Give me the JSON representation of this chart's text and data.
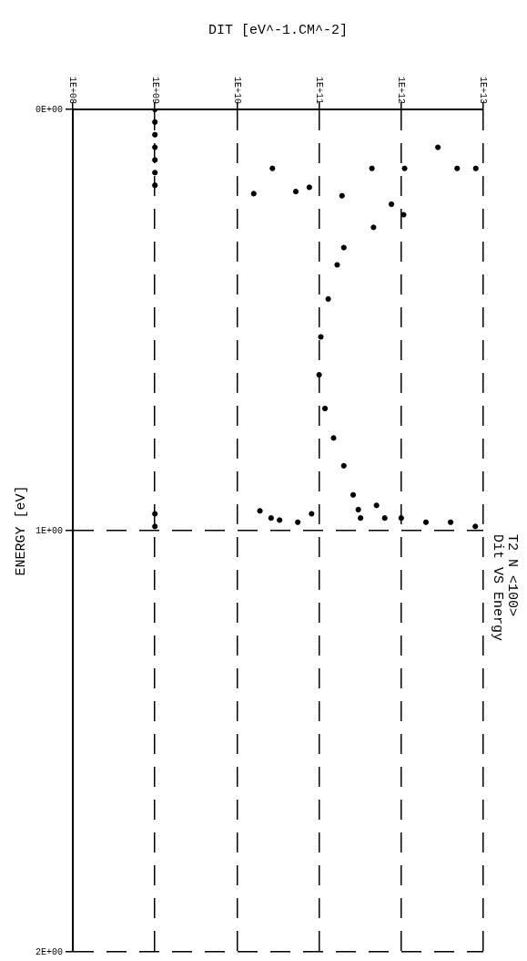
{
  "chart_data": {
    "type": "scatter",
    "xlabel": "DIT [eV^-1.CM^-2]",
    "ylabel": "ENERGY [eV]",
    "x": [
      1000000000.0,
      1000000000.0,
      1000000000.0,
      1000000000.0,
      1000000000.0,
      1000000000.0,
      1000000000.0,
      1000000000.0,
      1000000000.0,
      190000000000.0,
      760000000000.0,
      1070000000000.0,
      460000000000.0,
      200000000000.0,
      166000000000.0,
      129000000000.0,
      105000000000.0,
      100000000000.0,
      118000000000.0,
      150000000000.0,
      200000000000.0,
      260000000000.0,
      320000000000.0,
      630000000000.0,
      1000000000000.0,
      2000000000000.0,
      4000000000000.0,
      8000000000000.0,
      16000000000.0,
      52000000000.0,
      76000000000.0,
      27000000000.0,
      440000000000.0,
      1100000000000.0,
      4800000000000.0,
      8100000000000.0,
      2800000000000.0,
      19000000000.0,
      26000000000.0,
      33000000000.0,
      55000000000.0,
      81000000000.0,
      300000000000.0,
      500000000000.0
    ],
    "values": [
      0.0,
      0.03,
      0.06,
      0.09,
      0.12,
      0.15,
      0.18,
      0.96,
      0.99,
      0.205,
      0.225,
      0.25,
      0.28,
      0.328,
      0.369,
      0.45,
      0.54,
      0.63,
      0.71,
      0.78,
      0.846,
      0.915,
      0.97,
      0.97,
      0.97,
      0.98,
      0.98,
      0.99,
      0.2,
      0.195,
      0.185,
      0.14,
      0.14,
      0.14,
      0.14,
      0.14,
      0.09,
      0.953,
      0.97,
      0.975,
      0.98,
      0.96,
      0.95,
      0.94
    ],
    "color": "#000000",
    "marker": "circle",
    "xlim": [
      100000000.0,
      10000000000000.0
    ],
    "xticks": [
      {
        "value": 100000000.0,
        "label": "1E+08"
      },
      {
        "value": 1000000000.0,
        "label": "1E+09"
      },
      {
        "value": 10000000000.0,
        "label": "1E+10"
      },
      {
        "value": 100000000000.0,
        "label": "1E+11"
      },
      {
        "value": 1000000000000.0,
        "label": "1E+12"
      },
      {
        "value": 10000000000000.0,
        "label": "1E+13"
      }
    ],
    "ylim": [
      2,
      0
    ],
    "yticks": [
      {
        "value": 0,
        "label": "0E+00"
      },
      {
        "value": 1,
        "label": "1E+00"
      },
      {
        "value": 2,
        "label": "2E+00"
      }
    ],
    "log": "x",
    "grid": true,
    "annotations": [
      "Dit VS Energy",
      "T2 N <100>"
    ]
  }
}
